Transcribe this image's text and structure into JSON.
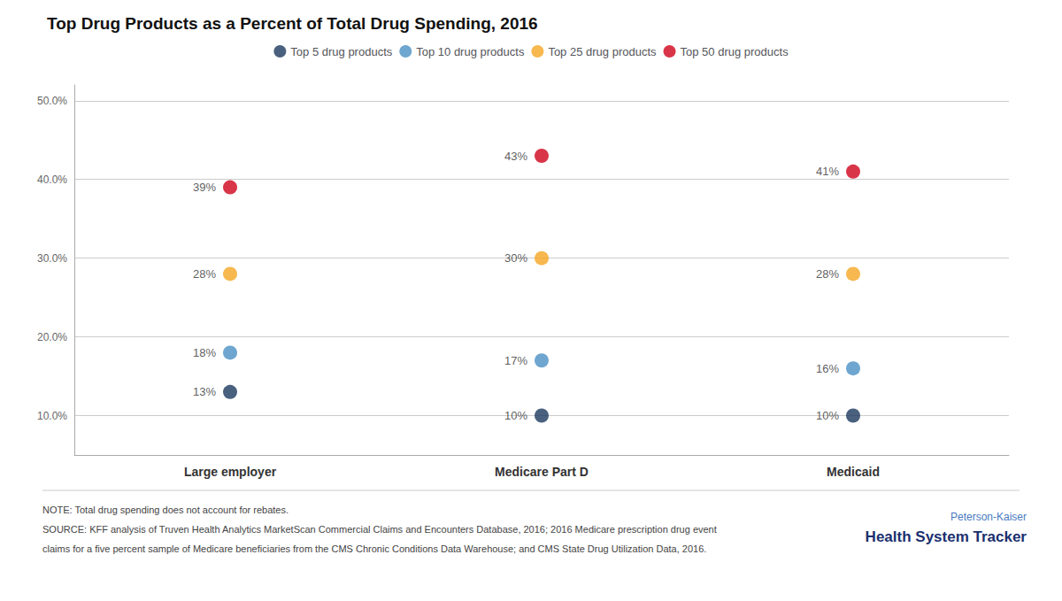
{
  "chart_data": {
    "type": "scatter",
    "title": "Top Drug Products as a Percent of Total Drug Spending, 2016",
    "categories": [
      "Large employer",
      "Medicare Part D",
      "Medicaid"
    ],
    "series": [
      {
        "name": "Top 5 drug products",
        "color": "#1b3a5e",
        "values": [
          13,
          10,
          10
        ],
        "value_labels": [
          "13%",
          "10%",
          "10%"
        ]
      },
      {
        "name": "Top 10 drug products",
        "color": "#4a90c4",
        "values": [
          18,
          17,
          16
        ],
        "value_labels": [
          "18%",
          "17%",
          "16%"
        ]
      },
      {
        "name": "Top 25 drug products",
        "color": "#f5a623",
        "values": [
          28,
          30,
          28
        ],
        "value_labels": [
          "28%",
          "30%",
          "28%"
        ]
      },
      {
        "name": "Top 50 drug products",
        "color": "#d0021b",
        "values": [
          39,
          43,
          41
        ],
        "value_labels": [
          "39%",
          "43%",
          "41%"
        ]
      }
    ],
    "ylim": [
      5,
      52
    ],
    "yticks": [
      {
        "value": 10,
        "label": "10.0%"
      },
      {
        "value": 20,
        "label": "20.0%"
      },
      {
        "value": 30,
        "label": "30.0%"
      },
      {
        "value": 40,
        "label": "40.0%"
      },
      {
        "value": 50,
        "label": "50.0%"
      }
    ],
    "grid": true,
    "legend": "top",
    "data_labels": true,
    "marker": "circle",
    "annotations": [
      "NOTE: Total drug spending does not account for rebates.",
      "SOURCE: KFF analysis of Truven Health Analytics MarketScan Commercial Claims and Encounters Database, 2016; 2016 Medicare prescription drug event",
      "claims for a five percent sample of Medicare beneficiaries from the CMS Chronic Conditions Data Warehouse; and CMS State Drug Utilization Data, 2016.",
      "Peterson-Kaiser",
      "Health System Tracker"
    ]
  }
}
